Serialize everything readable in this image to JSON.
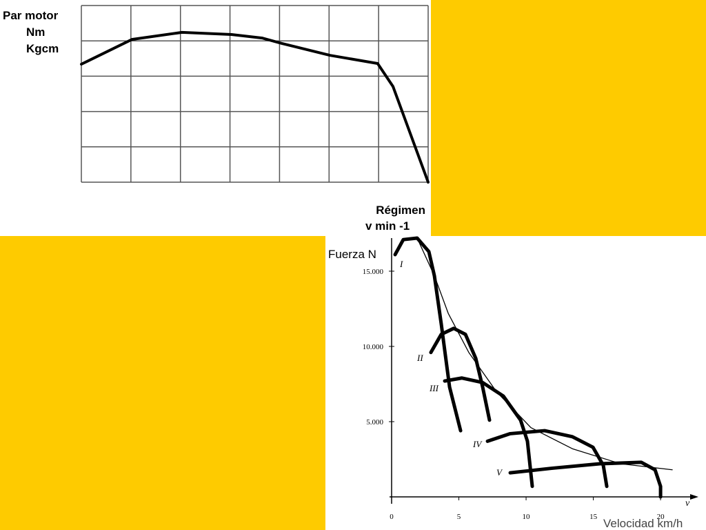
{
  "chart_data": [
    {
      "type": "line",
      "y_label": [
        "Par motor",
        "Nm",
        "Kgcm"
      ],
      "x_label": [
        "Régimen",
        "v min -1"
      ],
      "xlim": [
        0,
        7
      ],
      "ylim": [
        0,
        5
      ],
      "grid": true,
      "series": [
        {
          "color": "#000000",
          "x": [
            0,
            1.02,
            2.03,
            3.03,
            3.65,
            4.04,
            5.02,
            5.98,
            6.29,
            7
          ],
          "values": [
            3.34,
            4.04,
            4.24,
            4.18,
            4.08,
            3.93,
            3.59,
            3.36,
            2.71,
            0
          ]
        }
      ]
    },
    {
      "type": "line",
      "y_label": "Fuerza N",
      "x_label": "Velocidad km/h",
      "x_axis_symbol": "v",
      "xlim": [
        0,
        22.2
      ],
      "ylim": [
        0,
        17200
      ],
      "xticks": [
        0,
        5,
        10,
        15,
        20
      ],
      "yticks": [
        {
          "value": 5000,
          "label": "5.000"
        },
        {
          "value": 10000,
          "label": "10.000"
        },
        {
          "value": 15000,
          "label": "15.000"
        }
      ],
      "series": [
        {
          "name": "I",
          "color": "#000000",
          "x": [
            0.26,
            0.87,
            1.9,
            2.77,
            3.18,
            3.69,
            4.31,
            5.13
          ],
          "values": [
            16100,
            17100,
            17200,
            16300,
            14700,
            11500,
            7300,
            4400
          ]
        },
        {
          "name": "II",
          "color": "#000000",
          "x": [
            2.92,
            3.69,
            4.62,
            5.49,
            6.26,
            6.77,
            7.28
          ],
          "values": [
            9600,
            10800,
            11200,
            10800,
            9200,
            7300,
            5100
          ]
        },
        {
          "name": "III",
          "color": "#000000",
          "x": [
            3.95,
            5.23,
            6.77,
            8.31,
            9.59,
            10.1,
            10.46
          ],
          "values": [
            7700,
            7900,
            7600,
            6700,
            5100,
            3700,
            700
          ]
        },
        {
          "name": "IV",
          "color": "#000000",
          "x": [
            7.13,
            8.82,
            11.38,
            13.44,
            14.97,
            15.74,
            16.0
          ],
          "values": [
            3700,
            4200,
            4400,
            4000,
            3300,
            2100,
            700
          ]
        },
        {
          "name": "V",
          "color": "#000000",
          "x": [
            8.82,
            11.9,
            15.49,
            18.56,
            19.59,
            20.0,
            20.0
          ],
          "values": [
            1600,
            1900,
            2200,
            2300,
            1800,
            700,
            0
          ]
        },
        {
          "color": "#000000",
          "x": [
            1.9,
            3.18,
            4.21,
            5.74,
            7.79,
            10.36,
            13.44,
            17.03,
            20.87
          ],
          "values": [
            17200,
            14700,
            12200,
            9600,
            7000,
            4600,
            3200,
            2200,
            1800
          ]
        }
      ]
    }
  ]
}
